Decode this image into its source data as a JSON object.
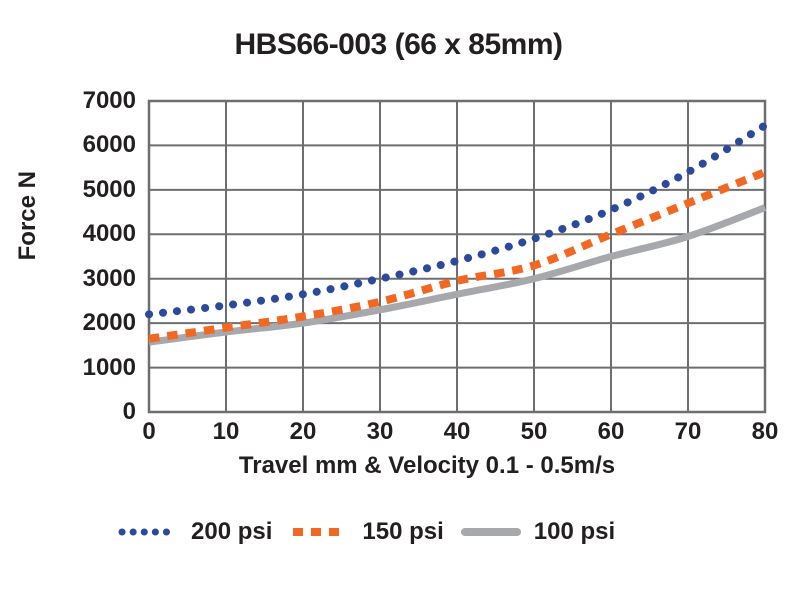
{
  "chart_data": {
    "type": "line",
    "title": "HBS66-003 (66 x 85mm)",
    "xlabel": "Travel mm & Velocity 0.1 - 0.5m/s",
    "ylabel": "Force N",
    "x": [
      0,
      10,
      20,
      30,
      40,
      50,
      60,
      70,
      80
    ],
    "x_ticks": [
      0,
      10,
      20,
      30,
      40,
      50,
      60,
      70,
      80
    ],
    "y_ticks": [
      0,
      1000,
      2000,
      3000,
      4000,
      5000,
      6000,
      7000
    ],
    "xlim": [
      0,
      80
    ],
    "ylim": [
      0,
      7000
    ],
    "grid": true,
    "legend_position": "bottom",
    "series": [
      {
        "name": "200 psi",
        "style": "dotted",
        "color": "#2b4a9b",
        "values": [
          2200,
          2400,
          2650,
          3000,
          3400,
          3900,
          4550,
          5400,
          6450
        ]
      },
      {
        "name": "150 psi",
        "style": "dashed",
        "color": "#f26722",
        "values": [
          1650,
          1900,
          2150,
          2480,
          2950,
          3300,
          4000,
          4700,
          5400
        ]
      },
      {
        "name": "100 psi",
        "style": "solid",
        "color": "#a6a8ab",
        "values": [
          1570,
          1800,
          2000,
          2300,
          2650,
          3000,
          3500,
          3950,
          4600
        ]
      }
    ],
    "colors": {
      "grid": "#6d6e71",
      "text": "#231f20",
      "background": "#ffffff"
    }
  }
}
